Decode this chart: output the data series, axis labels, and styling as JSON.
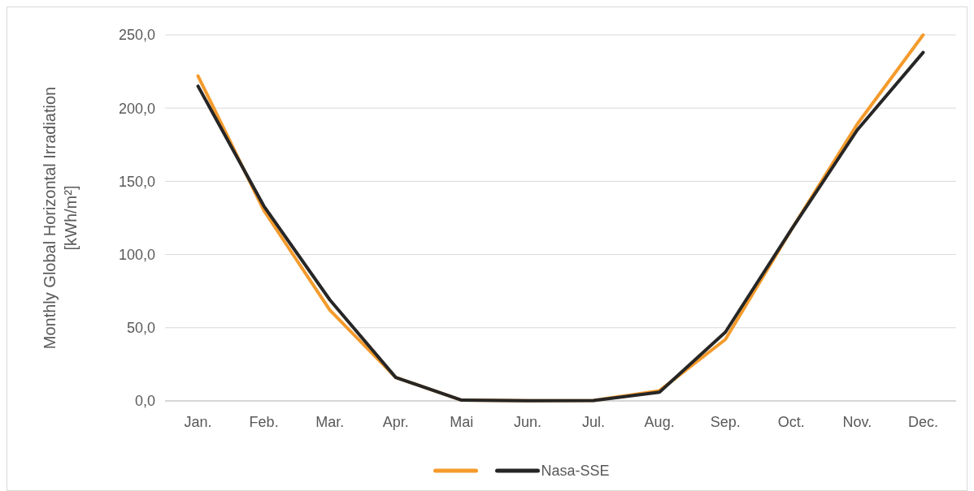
{
  "chart_data": {
    "type": "line",
    "ylabel": "Monthly Global Horizontal Irradiation\n[kWh/m²]",
    "categories": [
      "Jan.",
      "Feb.",
      "Mar.",
      "Apr.",
      "Mai",
      "Jun.",
      "Jul.",
      "Aug.",
      "Sep.",
      "Oct.",
      "Nov.",
      "Dec."
    ],
    "series": [
      {
        "color": "#f49b2c",
        "values": [
          222,
          130,
          62,
          16,
          0.5,
          0.2,
          0.3,
          7,
          42,
          117,
          189,
          250
        ]
      },
      {
        "name": "Nasa-SSE",
        "color": "#262626",
        "values": [
          215,
          133,
          69,
          16,
          0.5,
          0.2,
          0.3,
          6,
          47,
          117,
          185,
          238
        ]
      }
    ],
    "ylim": [
      0,
      250
    ],
    "yticks": [
      {
        "value": 0,
        "label": "0,0"
      },
      {
        "value": 50,
        "label": "50,0"
      },
      {
        "value": 100,
        "label": "100,0"
      },
      {
        "value": 150,
        "label": "150,0"
      },
      {
        "value": 200,
        "label": "200,0"
      },
      {
        "value": 250,
        "label": "250,0"
      }
    ],
    "grid": "y",
    "legend": "bottom",
    "marker": "none",
    "line_style": "solid"
  }
}
